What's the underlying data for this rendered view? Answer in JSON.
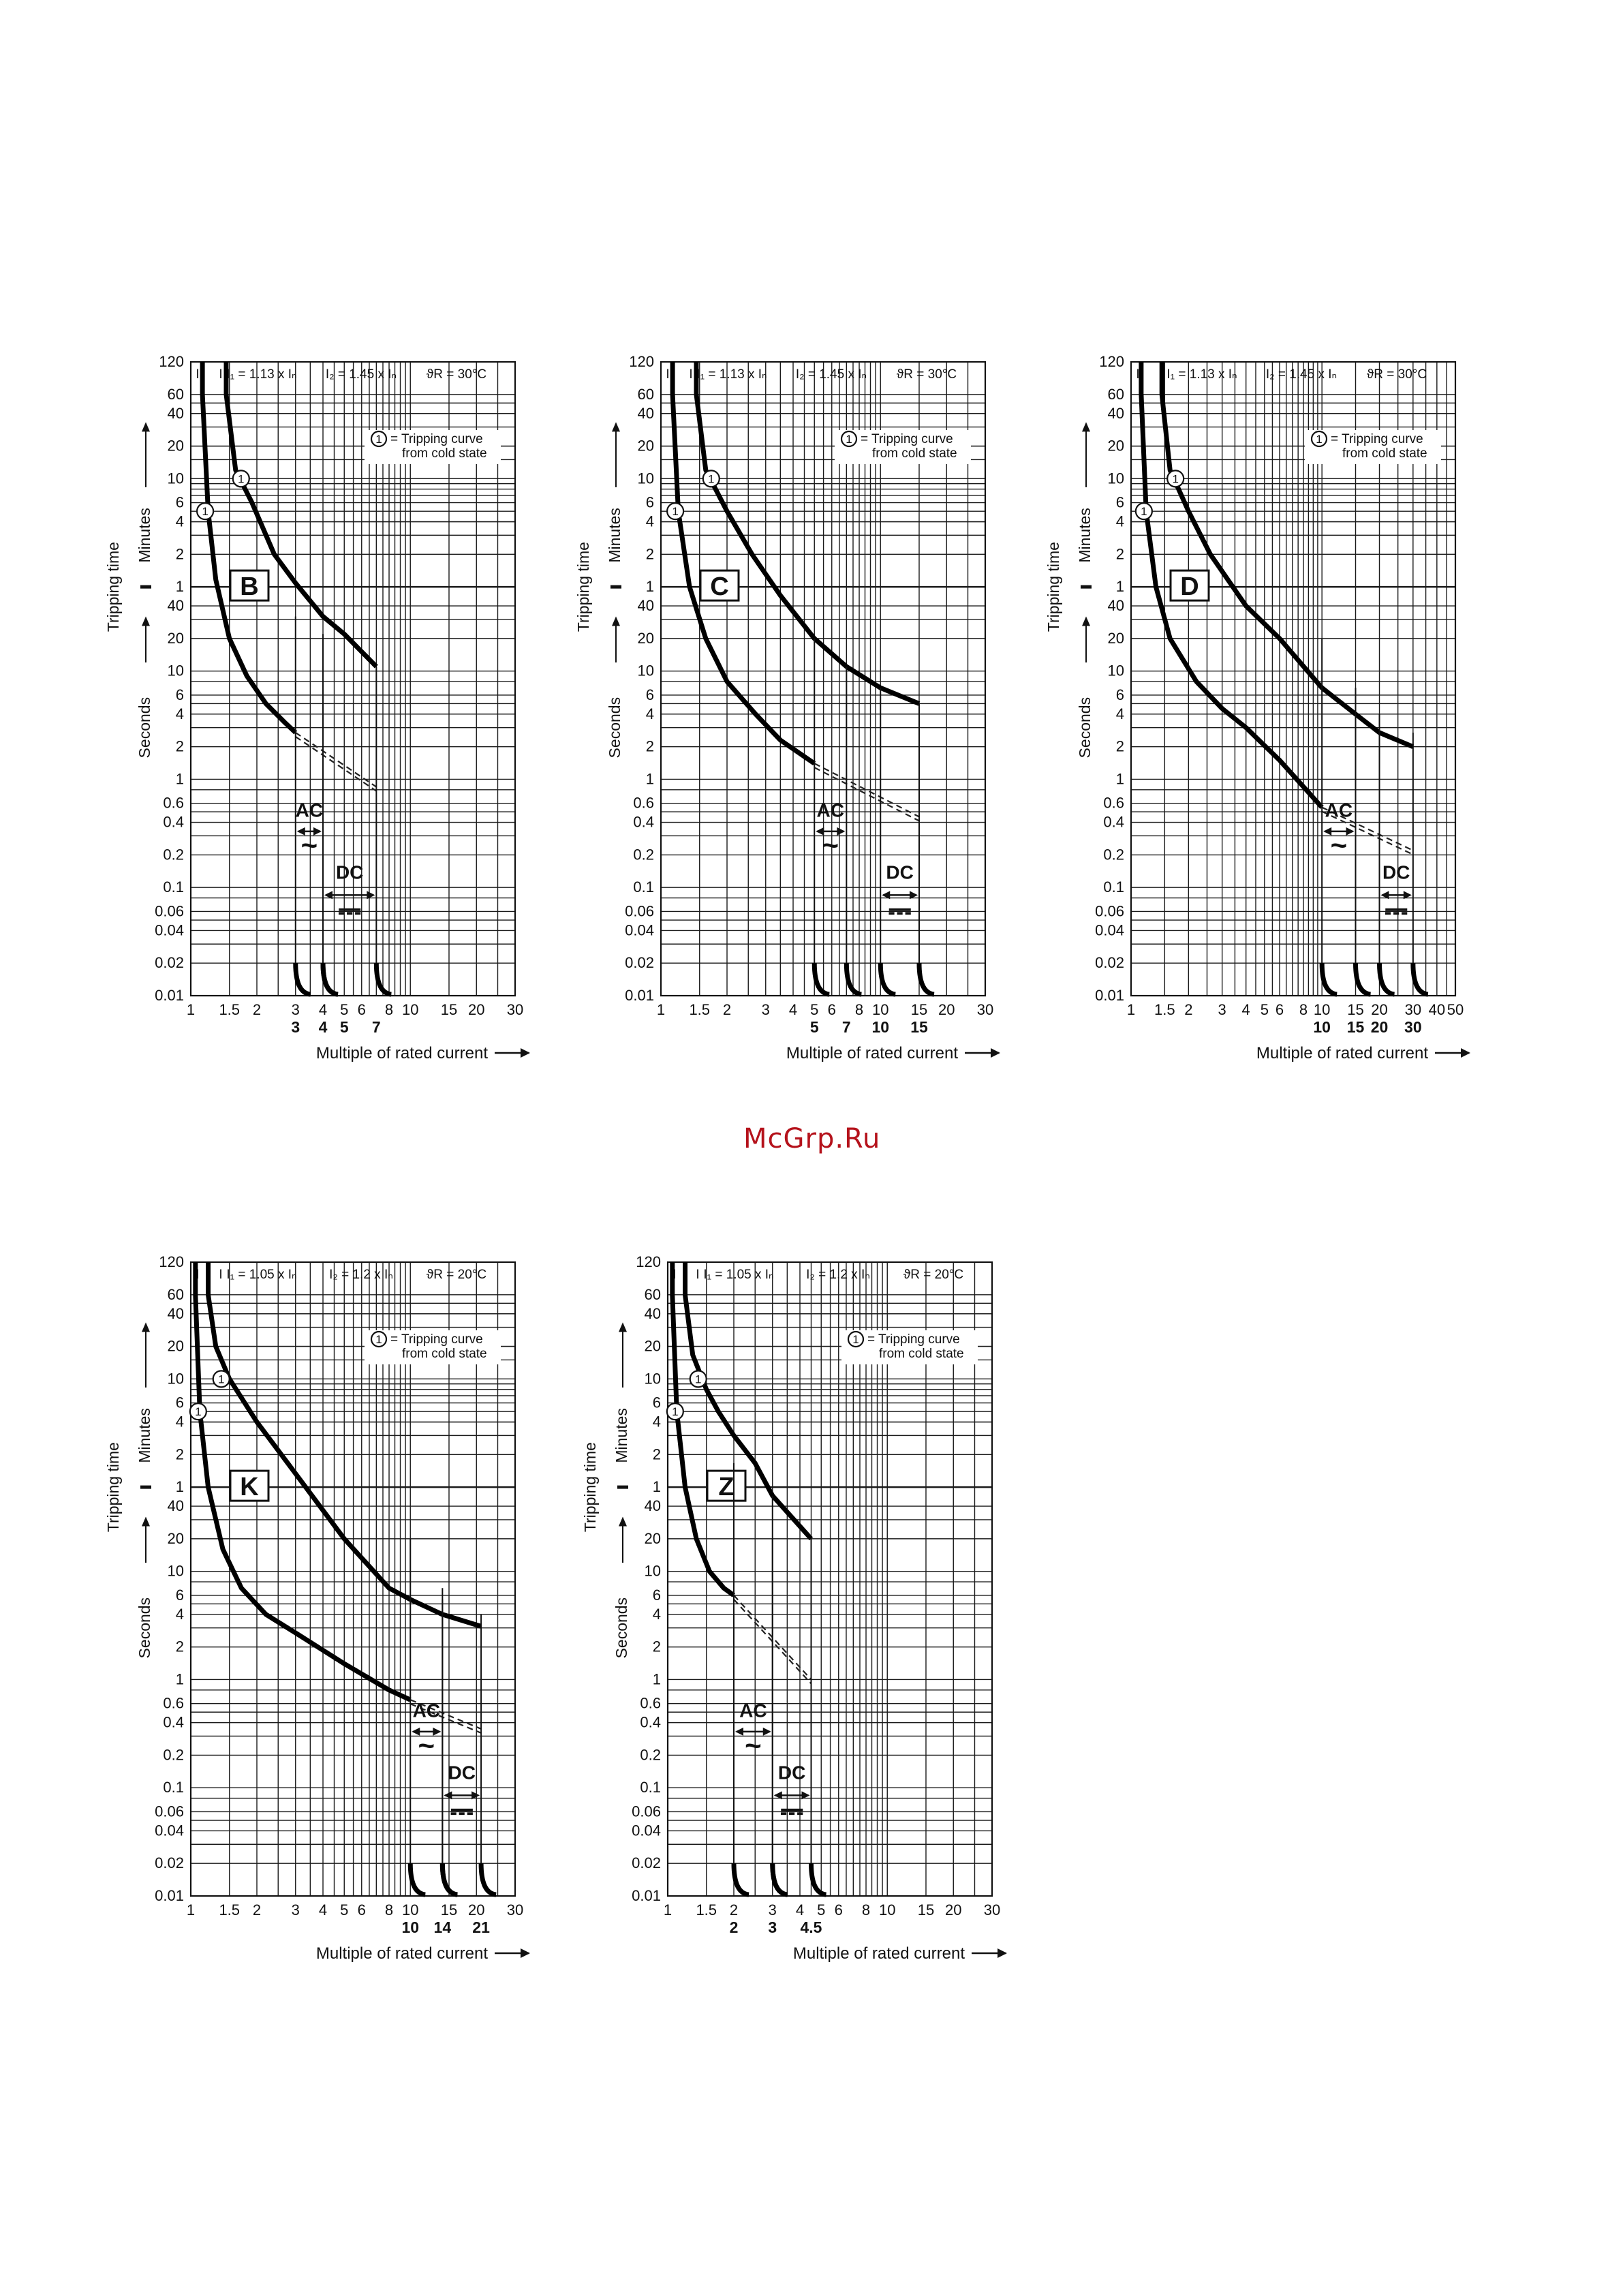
{
  "watermark": "McGrp.Ru",
  "y_tick_labels": {
    "minutes": [
      "120",
      "60",
      "40",
      "20",
      "10",
      "6",
      "4",
      "2",
      "1"
    ],
    "seconds": [
      "40",
      "20",
      "10",
      "6",
      "4",
      "2",
      "1",
      "0.6",
      "0.4",
      "0.2",
      "0.1",
      "0.06",
      "0.04",
      "0.02",
      "0.01"
    ]
  },
  "y_axis": {
    "title": "Tripping time",
    "minutes": "Minutes",
    "seconds": "Seconds"
  },
  "x_axis_title": "Multiple of rated current",
  "legend": {
    "circle": "1",
    "line1": "= Tripping curve",
    "line2": "from cold state"
  },
  "labels": {
    "ac": "AC",
    "dc": "DC",
    "tilde": "~",
    "dc_symbol": "⎓",
    "i1": "I",
    "i2": "I"
  },
  "colors": {
    "line": "#000000",
    "grid": "#1a1a1a",
    "watermark": "#b5121b"
  },
  "chart_data": [
    {
      "type": "line",
      "class_label": "B",
      "header": {
        "i1": "I₁ = 1.13 x Iₙ",
        "i2": "I₂ = 1.45 x Iₙ",
        "temp": "ϑR = 30°C"
      },
      "x_scale": "log",
      "xlim": [
        1,
        30
      ],
      "x_ticks": [
        "1",
        "1.5",
        "2",
        "3",
        "4",
        "5",
        "6",
        "8",
        "10",
        "15",
        "20",
        "30"
      ],
      "x_ticks_values": [
        1,
        1.5,
        2,
        3,
        4,
        5,
        6,
        8,
        10,
        15,
        20,
        30
      ],
      "x_sublabels": [
        "3",
        "4",
        "5",
        "7"
      ],
      "x_sublabels_values": [
        3,
        4,
        5,
        7
      ],
      "y_scale": "log",
      "ylim_seconds": [
        0.01,
        7200
      ],
      "upper_curve": {
        "x": [
          1.45,
          1.6,
          1.9,
          2.4,
          3,
          4,
          5,
          7
        ],
        "y_seconds": [
          3600,
          720,
          360,
          120,
          65,
          32,
          22,
          11
        ]
      },
      "lower_curve": {
        "x": [
          1.13,
          1.2,
          1.3,
          1.5,
          1.8,
          2.2,
          2.7,
          3
        ],
        "y_seconds": [
          3600,
          300,
          70,
          20,
          9,
          5,
          3.3,
          2.7
        ]
      },
      "ac_range": [
        3,
        4
      ],
      "dc_range": [
        4,
        7
      ],
      "dc_lower_end_s": 0.85,
      "ac_lower_end_s": 1.0
    },
    {
      "type": "line",
      "class_label": "C",
      "header": {
        "i1": "I₁ = 1.13 x Iₙ",
        "i2": "I₂ = 1.45 x Iₙ",
        "temp": "ϑR = 30°C"
      },
      "x_scale": "log",
      "xlim": [
        1,
        30
      ],
      "x_ticks": [
        "1",
        "1.5",
        "2",
        "3",
        "4",
        "5",
        "6",
        "8",
        "10",
        "15",
        "20",
        "30"
      ],
      "x_ticks_values": [
        1,
        1.5,
        2,
        3,
        4,
        5,
        6,
        8,
        10,
        15,
        20,
        30
      ],
      "x_sublabels": [
        "5",
        "7",
        "10",
        "15"
      ],
      "x_sublabels_values": [
        5,
        7,
        10,
        15
      ],
      "y_scale": "log",
      "ylim_seconds": [
        0.01,
        7200
      ],
      "upper_curve": {
        "x": [
          1.45,
          1.6,
          2,
          2.6,
          3.5,
          5,
          7,
          10,
          15
        ],
        "y_seconds": [
          3600,
          720,
          300,
          120,
          50,
          20,
          11,
          7,
          5
        ]
      },
      "lower_curve": {
        "x": [
          1.13,
          1.2,
          1.35,
          1.6,
          2,
          2.7,
          3.5,
          5
        ],
        "y_seconds": [
          3600,
          300,
          60,
          20,
          8,
          4,
          2.3,
          1.4
        ]
      },
      "ac_range": [
        5,
        7
      ],
      "dc_range": [
        10,
        15
      ],
      "dc_lower_end_s": 0.45,
      "ac_lower_end_s": 0.7
    },
    {
      "type": "line",
      "class_label": "D",
      "header": {
        "i1": "I₁ = 1.13 x Iₙ",
        "i2": "I₂ = 1.45 x Iₙ",
        "temp": "ϑR = 30°C"
      },
      "x_scale": "log",
      "xlim": [
        1,
        50
      ],
      "x_ticks": [
        "1",
        "1.5",
        "2",
        "3",
        "4",
        "5",
        "6",
        "8",
        "10",
        "15",
        "20",
        "30",
        "40",
        "50"
      ],
      "x_ticks_values": [
        1,
        1.5,
        2,
        3,
        4,
        5,
        6,
        8,
        10,
        15,
        20,
        30,
        40,
        50
      ],
      "x_sublabels": [
        "10",
        "15",
        "20",
        "30"
      ],
      "x_sublabels_values": [
        10,
        15,
        20,
        30
      ],
      "y_scale": "log",
      "ylim_seconds": [
        0.01,
        7200
      ],
      "upper_curve": {
        "x": [
          1.45,
          1.6,
          2,
          2.6,
          4,
          6,
          10,
          15,
          20,
          30
        ],
        "y_seconds": [
          3600,
          720,
          300,
          120,
          40,
          20,
          7,
          4,
          2.7,
          2
        ]
      },
      "lower_curve": {
        "x": [
          1.13,
          1.2,
          1.35,
          1.6,
          2.2,
          3,
          4,
          6,
          10
        ],
        "y_seconds": [
          3600,
          300,
          60,
          20,
          8,
          4.5,
          3,
          1.5,
          0.55
        ]
      },
      "ac_range": [
        10,
        15
      ],
      "dc_range": [
        20,
        30
      ],
      "dc_lower_end_s": 0.22,
      "ac_lower_end_s": 0.3
    },
    {
      "type": "line",
      "class_label": "K",
      "header": {
        "i1": "I₁ = 1.05 x Iₙ",
        "i2": "I₂ = 1.2 x Iₙ",
        "temp": "ϑR = 20°C"
      },
      "x_scale": "log",
      "xlim": [
        1,
        30
      ],
      "x_ticks": [
        "1",
        "1.5",
        "2",
        "3",
        "4",
        "5",
        "6",
        "8",
        "10",
        "15",
        "20",
        "30"
      ],
      "x_ticks_values": [
        1,
        1.5,
        2,
        3,
        4,
        5,
        6,
        8,
        10,
        15,
        20,
        30
      ],
      "x_sublabels": [
        "10",
        "14",
        "21"
      ],
      "x_sublabels_values": [
        10,
        14,
        21
      ],
      "y_scale": "log",
      "ylim_seconds": [
        0.01,
        7200
      ],
      "upper_curve": {
        "x": [
          1.2,
          1.3,
          1.5,
          2,
          3,
          5,
          8,
          10,
          14,
          21
        ],
        "y_seconds": [
          3600,
          1200,
          600,
          240,
          80,
          20,
          7,
          5.5,
          4,
          3.1
        ]
      },
      "lower_curve": {
        "x": [
          1.05,
          1.1,
          1.2,
          1.4,
          1.7,
          2.2,
          3,
          5,
          8,
          10
        ],
        "y_seconds": [
          3600,
          300,
          60,
          16,
          7,
          4,
          2.7,
          1.4,
          0.8,
          0.65
        ]
      },
      "ac_range": [
        10,
        14
      ],
      "dc_range": [
        14,
        21
      ],
      "dc_lower_end_s": 0.35,
      "ac_lower_end_s": 0.45
    },
    {
      "type": "line",
      "class_label": "Z",
      "header": {
        "i1": "I₁ = 1.05 x Iₙ",
        "i2": "I₂ = 1.2 x Iₙ",
        "temp": "ϑR = 20°C"
      },
      "x_scale": "log",
      "xlim": [
        1,
        30
      ],
      "x_ticks": [
        "1",
        "1.5",
        "2",
        "3",
        "4",
        "5",
        "6",
        "8",
        "10",
        "15",
        "20",
        "30"
      ],
      "x_ticks_values": [
        1,
        1.5,
        2,
        3,
        4,
        5,
        6,
        8,
        10,
        15,
        20,
        30
      ],
      "x_sublabels": [
        "2",
        "3",
        "4.5"
      ],
      "x_sublabels_values": [
        2,
        3,
        4.5
      ],
      "y_scale": "log",
      "ylim_seconds": [
        0.01,
        7200
      ],
      "upper_curve": {
        "x": [
          1.2,
          1.3,
          1.5,
          1.7,
          2,
          2.5,
          3,
          4.5
        ],
        "y_seconds": [
          3600,
          1000,
          480,
          300,
          180,
          100,
          50,
          20
        ]
      },
      "lower_curve": {
        "x": [
          1.05,
          1.1,
          1.2,
          1.35,
          1.55,
          1.8,
          2
        ],
        "y_seconds": [
          3600,
          300,
          60,
          20,
          10,
          7,
          6
        ]
      },
      "ac_range": [
        2,
        3
      ],
      "dc_range": [
        3,
        4.5
      ],
      "dc_lower_end_s": 1.0,
      "ac_lower_end_s": 1.3
    }
  ]
}
